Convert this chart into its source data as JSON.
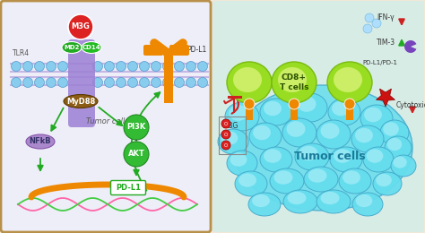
{
  "bg_color": "#f0e8d8",
  "left_panel_bg": "#eeeef8",
  "left_panel_border": "#b8904a",
  "right_panel_bg": "#c8f0f0",
  "right_panel_border": "#b8904a",
  "membrane_color": "#9b7fd4",
  "membrane_dot_color": "#88ccee",
  "membrane_dot_edge": "#5599cc",
  "m3g_color": "#dd2222",
  "md2_color": "#22aa22",
  "cd14_color": "#22bb22",
  "myd88_color": "#8B5c14",
  "nfkb_color": "#aa88cc",
  "pi3k_color": "#33bb33",
  "akt_color": "#33bb33",
  "pdl1_receptor_color": "#ee8800",
  "arrow_green": "#22aa22",
  "arrow_black": "#333333",
  "arrow_red": "#cc2222",
  "dna_pink": "#ff66aa",
  "dna_green": "#44cc44",
  "chrom_color": "#ee8800",
  "pdl1_box_color": "#22aa22",
  "tcell_outer": "#99dd22",
  "tcell_inner": "#ccee66",
  "tumor_cyan": "#66ddee",
  "tumor_border": "#44aacc",
  "receptor_orange": "#ee8800",
  "purple_shape": "#7744bb",
  "bubble_cyan": "#aaddff",
  "star_red": "#cc1111",
  "ifn_label": "IFN-γ",
  "tim3_label": "TIM-3",
  "pdl1pd1_label": "PD-L1/PD-1",
  "cytotox_label": "Cytotoxicity",
  "m3g_label": "M3G",
  "cd8_label": "CD8+\nT cells",
  "tumor_label": "Tumor cells"
}
